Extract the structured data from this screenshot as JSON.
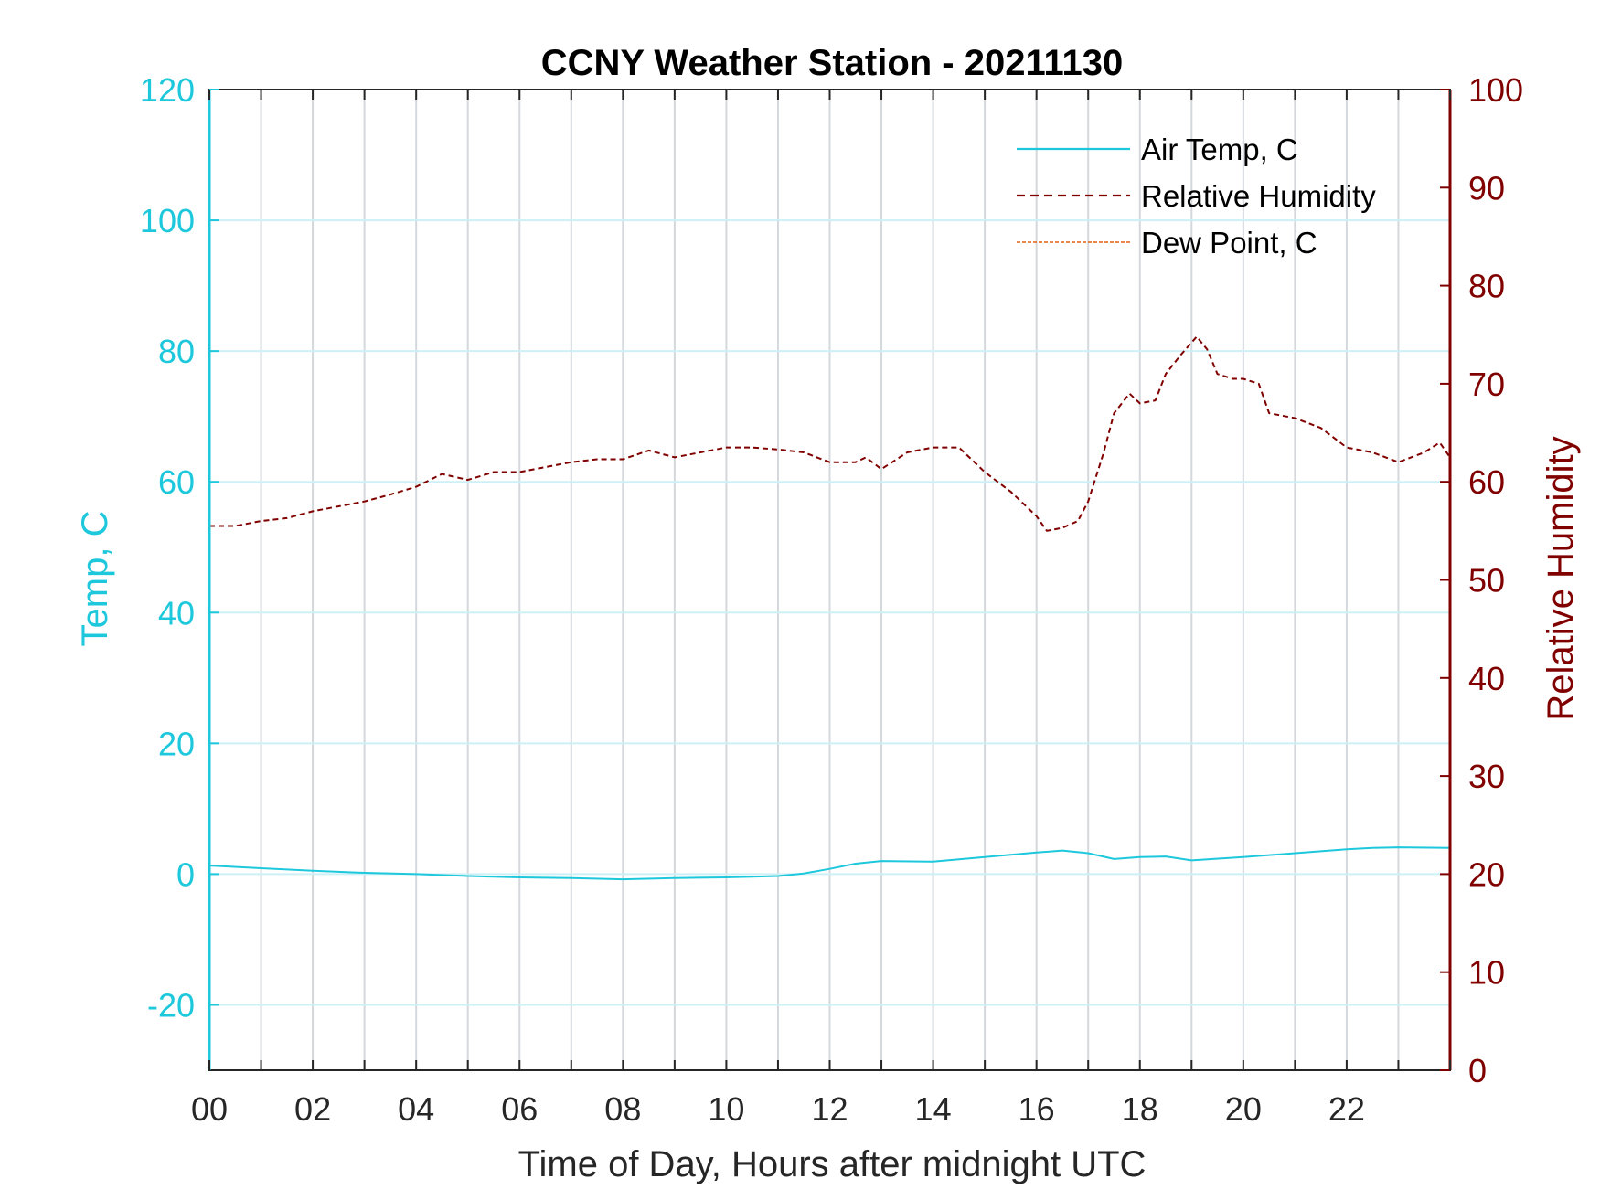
{
  "chart_data": {
    "type": "line",
    "title": "CCNY Weather Station - 20211130",
    "xlabel": "Time of Day, Hours after midnight UTC",
    "ylabel_left": "Temp, C",
    "ylabel_right": "Relative Humidity",
    "xlim": [
      0,
      24
    ],
    "ylim_left": [
      -30,
      120
    ],
    "ylim_right": [
      0,
      100
    ],
    "x_ticks": [
      0,
      2,
      4,
      6,
      8,
      10,
      12,
      14,
      16,
      18,
      20,
      22
    ],
    "x_tick_labels": [
      "00",
      "02",
      "04",
      "06",
      "08",
      "10",
      "12",
      "14",
      "16",
      "18",
      "20",
      "22"
    ],
    "y_ticks_left": [
      -20,
      0,
      20,
      40,
      60,
      80,
      100,
      120
    ],
    "y_tick_labels_left": [
      "-20",
      "0",
      "20",
      "40",
      "60",
      "80",
      "100",
      "120"
    ],
    "y_ticks_right": [
      0,
      10,
      20,
      30,
      40,
      50,
      60,
      70,
      80,
      90,
      100
    ],
    "y_tick_labels_right": [
      "0",
      "10",
      "20",
      "30",
      "40",
      "50",
      "60",
      "70",
      "80",
      "90",
      "100"
    ],
    "grid": true,
    "legend_position": "top-right",
    "colors": {
      "left_axis": "#1ec8dc",
      "right_axis": "#800000",
      "air_temp": "#1ec8dc",
      "humidity": "#800000",
      "dew_point": "#e06010",
      "grid_vertical": "#d4d8dc",
      "grid_horizontal": "#cdf0f6"
    },
    "series": [
      {
        "name": "Air Temp, C",
        "axis": "left",
        "style": "solid",
        "x": [
          0,
          1,
          2,
          3,
          4,
          5,
          6,
          7,
          8,
          9,
          10,
          11,
          11.5,
          12,
          12.5,
          13,
          14,
          15,
          16,
          16.5,
          17,
          17.5,
          18,
          18.5,
          19,
          20,
          21,
          22,
          22.5,
          23,
          24
        ],
        "values": [
          1.3,
          0.9,
          0.5,
          0.2,
          0,
          -0.3,
          -0.5,
          -0.6,
          -0.8,
          -0.6,
          -0.5,
          -0.3,
          0.1,
          0.8,
          1.6,
          2.0,
          1.9,
          2.6,
          3.3,
          3.6,
          3.2,
          2.3,
          2.6,
          2.7,
          2.1,
          2.6,
          3.2,
          3.8,
          4.0,
          4.1,
          4.0
        ]
      },
      {
        "name": "Relative Humidity",
        "axis": "right",
        "style": "dashed",
        "x": [
          0,
          0.5,
          1,
          1.5,
          2,
          2.5,
          3,
          3.5,
          4,
          4.5,
          5,
          5.5,
          6,
          6.5,
          7,
          7.5,
          8,
          8.5,
          9,
          9.5,
          10,
          10.5,
          11,
          11.5,
          12,
          12.5,
          12.7,
          13,
          13.5,
          14,
          14.5,
          14.7,
          15,
          15.5,
          15.8,
          16,
          16.2,
          16.5,
          16.8,
          17,
          17.3,
          17.5,
          17.8,
          18,
          18.3,
          18.5,
          18.8,
          19.1,
          19.3,
          19.5,
          19.8,
          20,
          20.3,
          20.5,
          21,
          21.5,
          22,
          22.5,
          23,
          23.5,
          23.8,
          24
        ],
        "values": [
          55.5,
          55.5,
          56,
          56.3,
          57,
          57.5,
          58,
          58.7,
          59.5,
          60.8,
          60.2,
          61,
          61,
          61.5,
          62,
          62.3,
          62.3,
          63.2,
          62.5,
          63,
          63.5,
          63.5,
          63.3,
          63,
          62,
          62,
          62.5,
          61.3,
          63,
          63.5,
          63.5,
          62.5,
          61,
          59,
          57.5,
          56.5,
          55,
          55.3,
          56,
          58,
          63,
          67,
          69,
          68,
          68.3,
          71,
          73,
          74.8,
          73.5,
          71,
          70.5,
          70.5,
          70,
          67,
          66.5,
          65.5,
          63.5,
          63,
          62,
          63,
          64,
          62.5
        ]
      },
      {
        "name": "Dew Point, C",
        "axis": "left",
        "style": "dashed",
        "x": [],
        "values": []
      }
    ]
  }
}
